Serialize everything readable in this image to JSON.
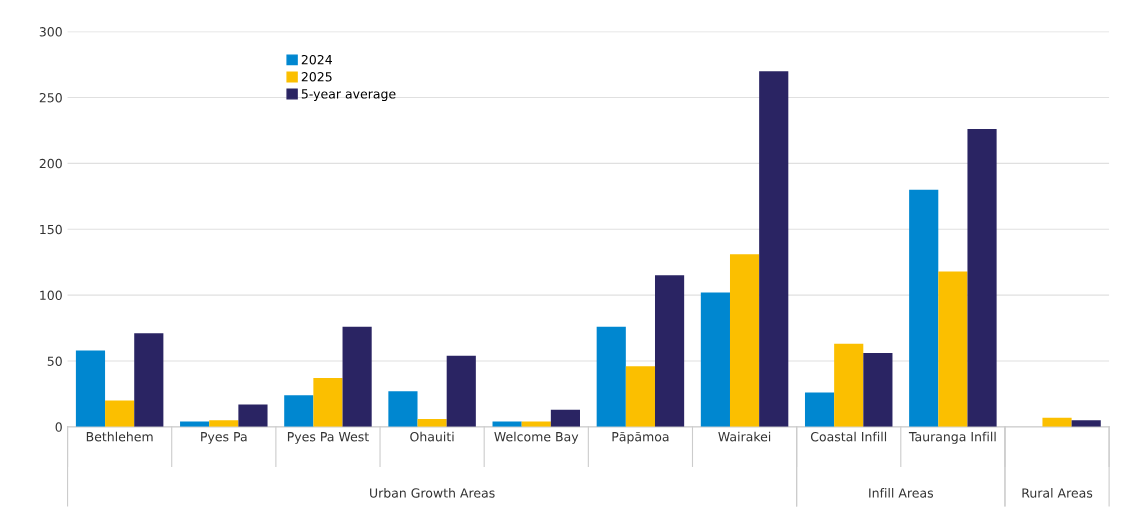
{
  "chart_data": {
    "type": "bar",
    "categories": [
      "Bethlehem",
      "Pyes Pa",
      "Pyes Pa West",
      "Ohauiti",
      "Welcome Bay",
      "Pāpāmoa",
      "Wairakei",
      "Coastal Infill",
      "Tauranga Infill",
      null
    ],
    "series": [
      {
        "name": "2024",
        "color": "#0087d0",
        "values": [
          58,
          4,
          24,
          27,
          4,
          76,
          102,
          26,
          180,
          null
        ]
      },
      {
        "name": "2025",
        "color": "#fbbf00",
        "values": [
          20,
          5,
          37,
          6,
          4,
          46,
          131,
          63,
          118,
          7
        ]
      },
      {
        "name": "5-year average",
        "color": "#2a2463",
        "values": [
          71,
          17,
          76,
          54,
          13,
          115,
          270,
          56,
          226,
          5
        ]
      }
    ],
    "annotations": [
      "Urban Growth Areas",
      "Infill Areas",
      "Rural Areas"
    ],
    "ylim": [
      0,
      300
    ],
    "yticks": [
      0,
      50,
      100,
      150,
      200,
      250,
      300
    ],
    "grid": "y",
    "legend": "top left"
  }
}
